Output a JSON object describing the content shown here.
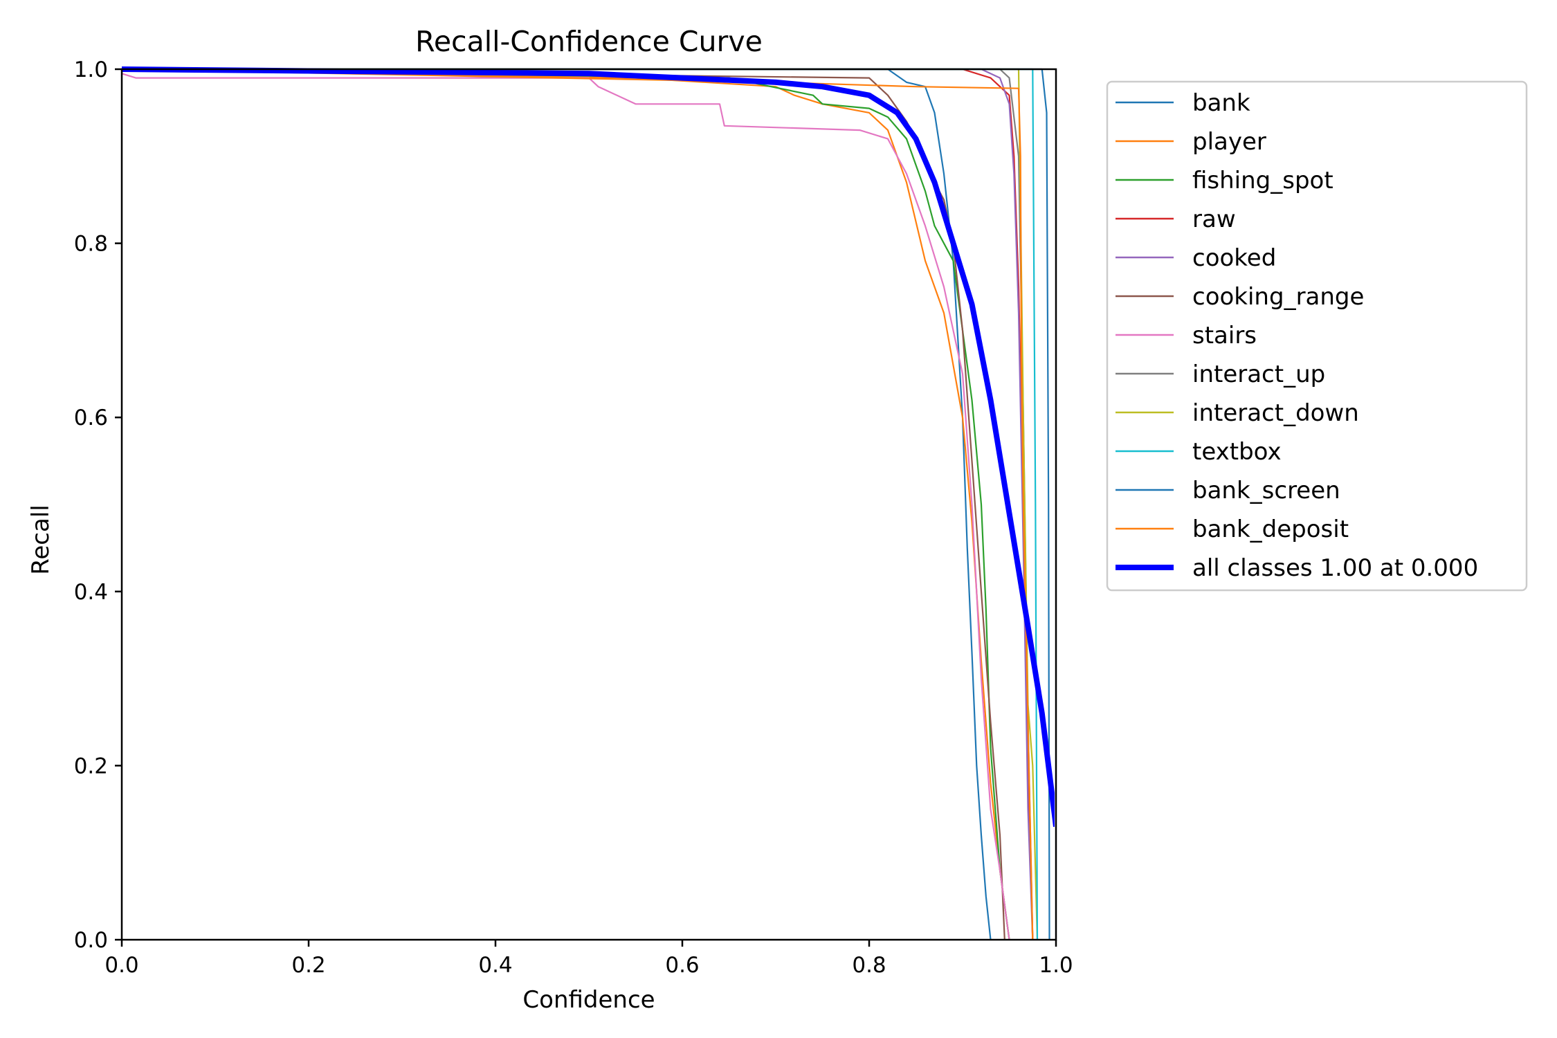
{
  "chart_data": {
    "type": "line",
    "title": "Recall-Confidence Curve",
    "xlabel": "Confidence",
    "ylabel": "Recall",
    "xlim": [
      0.0,
      1.0
    ],
    "ylim": [
      0.0,
      1.0
    ],
    "xticks": [
      "0.0",
      "0.2",
      "0.4",
      "0.6",
      "0.8",
      "1.0"
    ],
    "yticks": [
      "0.0",
      "0.2",
      "0.4",
      "0.6",
      "0.8",
      "1.0"
    ],
    "grid": false,
    "legend_position": "outside-right",
    "series": [
      {
        "name": "bank",
        "color": "#1f77b4",
        "points": [
          [
            0,
            1.0
          ],
          [
            0.82,
            1.0
          ],
          [
            0.84,
            0.985
          ],
          [
            0.86,
            0.98
          ],
          [
            0.87,
            0.95
          ],
          [
            0.88,
            0.88
          ],
          [
            0.89,
            0.78
          ],
          [
            0.9,
            0.6
          ],
          [
            0.905,
            0.45
          ],
          [
            0.91,
            0.33
          ],
          [
            0.915,
            0.2
          ],
          [
            0.92,
            0.12
          ],
          [
            0.925,
            0.05
          ],
          [
            0.93,
            0.0
          ]
        ]
      },
      {
        "name": "player",
        "color": "#ff7f0e",
        "points": [
          [
            0,
            1.0
          ],
          [
            0.55,
            0.99
          ],
          [
            0.7,
            0.98
          ],
          [
            0.72,
            0.97
          ],
          [
            0.75,
            0.96
          ],
          [
            0.8,
            0.95
          ],
          [
            0.82,
            0.93
          ],
          [
            0.84,
            0.87
          ],
          [
            0.86,
            0.78
          ],
          [
            0.88,
            0.72
          ],
          [
            0.9,
            0.6
          ],
          [
            0.91,
            0.48
          ],
          [
            0.92,
            0.32
          ],
          [
            0.93,
            0.18
          ],
          [
            0.94,
            0.08
          ],
          [
            0.95,
            0.0
          ]
        ]
      },
      {
        "name": "fishing_spot",
        "color": "#2ca02c",
        "points": [
          [
            0,
            1.0
          ],
          [
            0.65,
            0.99
          ],
          [
            0.74,
            0.97
          ],
          [
            0.75,
            0.96
          ],
          [
            0.8,
            0.955
          ],
          [
            0.82,
            0.945
          ],
          [
            0.84,
            0.92
          ],
          [
            0.86,
            0.86
          ],
          [
            0.87,
            0.82
          ],
          [
            0.89,
            0.78
          ],
          [
            0.9,
            0.7
          ],
          [
            0.91,
            0.62
          ],
          [
            0.92,
            0.5
          ],
          [
            0.925,
            0.38
          ],
          [
            0.93,
            0.22
          ],
          [
            0.94,
            0.08
          ],
          [
            0.95,
            0.0
          ]
        ]
      },
      {
        "name": "raw",
        "color": "#d62728",
        "points": [
          [
            0,
            1.0
          ],
          [
            0.9,
            1.0
          ],
          [
            0.93,
            0.99
          ],
          [
            0.95,
            0.97
          ],
          [
            0.955,
            0.9
          ],
          [
            0.96,
            0.75
          ],
          [
            0.965,
            0.5
          ],
          [
            0.97,
            0.2
          ],
          [
            0.975,
            0.0
          ]
        ]
      },
      {
        "name": "cooked",
        "color": "#9467bd",
        "points": [
          [
            0,
            1.0
          ],
          [
            0.92,
            1.0
          ],
          [
            0.94,
            0.99
          ],
          [
            0.95,
            0.96
          ],
          [
            0.955,
            0.88
          ],
          [
            0.96,
            0.72
          ],
          [
            0.965,
            0.45
          ],
          [
            0.97,
            0.15
          ],
          [
            0.975,
            0.0
          ]
        ]
      },
      {
        "name": "cooking_range",
        "color": "#8c564b",
        "points": [
          [
            0,
            1.0
          ],
          [
            0.8,
            0.99
          ],
          [
            0.82,
            0.97
          ],
          [
            0.84,
            0.94
          ],
          [
            0.86,
            0.9
          ],
          [
            0.87,
            0.87
          ],
          [
            0.88,
            0.85
          ],
          [
            0.89,
            0.8
          ],
          [
            0.9,
            0.7
          ],
          [
            0.91,
            0.55
          ],
          [
            0.92,
            0.4
          ],
          [
            0.93,
            0.25
          ],
          [
            0.94,
            0.12
          ],
          [
            0.945,
            0.0
          ]
        ]
      },
      {
        "name": "stairs",
        "color": "#e377c2",
        "points": [
          [
            0,
            0.995
          ],
          [
            0.015,
            0.99
          ],
          [
            0.5,
            0.99
          ],
          [
            0.51,
            0.98
          ],
          [
            0.55,
            0.96
          ],
          [
            0.64,
            0.96
          ],
          [
            0.645,
            0.935
          ],
          [
            0.79,
            0.93
          ],
          [
            0.82,
            0.92
          ],
          [
            0.84,
            0.88
          ],
          [
            0.86,
            0.82
          ],
          [
            0.88,
            0.75
          ],
          [
            0.9,
            0.65
          ],
          [
            0.91,
            0.5
          ],
          [
            0.92,
            0.3
          ],
          [
            0.93,
            0.15
          ],
          [
            0.94,
            0.08
          ],
          [
            0.95,
            0.0
          ]
        ]
      },
      {
        "name": "interact_up",
        "color": "#7f7f7f",
        "points": [
          [
            0,
            1.0
          ],
          [
            0.94,
            1.0
          ],
          [
            0.95,
            0.99
          ],
          [
            0.96,
            0.9
          ],
          [
            0.965,
            0.6
          ],
          [
            0.97,
            0.25
          ],
          [
            0.975,
            0.0
          ]
        ]
      },
      {
        "name": "interact_down",
        "color": "#bcbd22",
        "points": [
          [
            0,
            1.0
          ],
          [
            0.96,
            1.0
          ],
          [
            0.965,
            0.6
          ],
          [
            0.97,
            0.27
          ],
          [
            0.975,
            0.2
          ],
          [
            0.98,
            0.0
          ]
        ]
      },
      {
        "name": "textbox",
        "color": "#17becf",
        "points": [
          [
            0,
            1.0
          ],
          [
            0.975,
            1.0
          ],
          [
            0.978,
            0.5
          ],
          [
            0.98,
            0.0
          ]
        ]
      },
      {
        "name": "bank_screen",
        "color": "#1f77b4",
        "points": [
          [
            0,
            1.0
          ],
          [
            0.985,
            1.0
          ],
          [
            0.99,
            0.95
          ],
          [
            0.992,
            0.5
          ],
          [
            0.993,
            0.0
          ]
        ]
      },
      {
        "name": "bank_deposit",
        "color": "#ff7f0e",
        "points": [
          [
            0,
            1.0
          ],
          [
            0.7,
            0.985
          ],
          [
            0.85,
            0.98
          ],
          [
            0.96,
            0.978
          ],
          [
            0.962,
            0.9
          ],
          [
            0.963,
            0.67
          ],
          [
            0.965,
            0.5
          ],
          [
            0.97,
            0.25
          ],
          [
            0.975,
            0.0
          ]
        ]
      },
      {
        "name": "all classes 1.00 at 0.000",
        "color": "#0000ff",
        "thick": true,
        "points": [
          [
            0,
            1.0
          ],
          [
            0.5,
            0.995
          ],
          [
            0.6,
            0.99
          ],
          [
            0.7,
            0.985
          ],
          [
            0.75,
            0.98
          ],
          [
            0.8,
            0.97
          ],
          [
            0.83,
            0.95
          ],
          [
            0.85,
            0.92
          ],
          [
            0.87,
            0.87
          ],
          [
            0.89,
            0.8
          ],
          [
            0.91,
            0.73
          ],
          [
            0.93,
            0.62
          ],
          [
            0.95,
            0.49
          ],
          [
            0.97,
            0.36
          ],
          [
            0.985,
            0.26
          ],
          [
            1.0,
            0.13
          ]
        ]
      }
    ]
  }
}
